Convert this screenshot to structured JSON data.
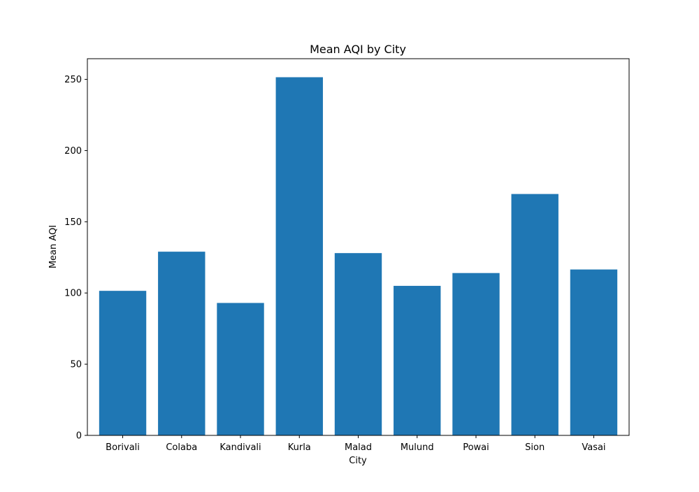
{
  "chart_data": {
    "type": "bar",
    "title": "Mean AQI by City",
    "xlabel": "City",
    "ylabel": "Mean AQI",
    "categories": [
      "Borivali",
      "Colaba",
      "Kandivali",
      "Kurla",
      "Malad",
      "Mulund",
      "Powai",
      "Sion",
      "Vasai"
    ],
    "values": [
      101.5,
      129,
      93,
      251.5,
      128,
      105,
      114,
      169.5,
      116.5
    ],
    "ylim": [
      0,
      264.5
    ],
    "yticks": [
      0,
      50,
      100,
      150,
      200,
      250
    ],
    "grid": false,
    "legend": "none",
    "bar_color": "#1f77b4"
  }
}
